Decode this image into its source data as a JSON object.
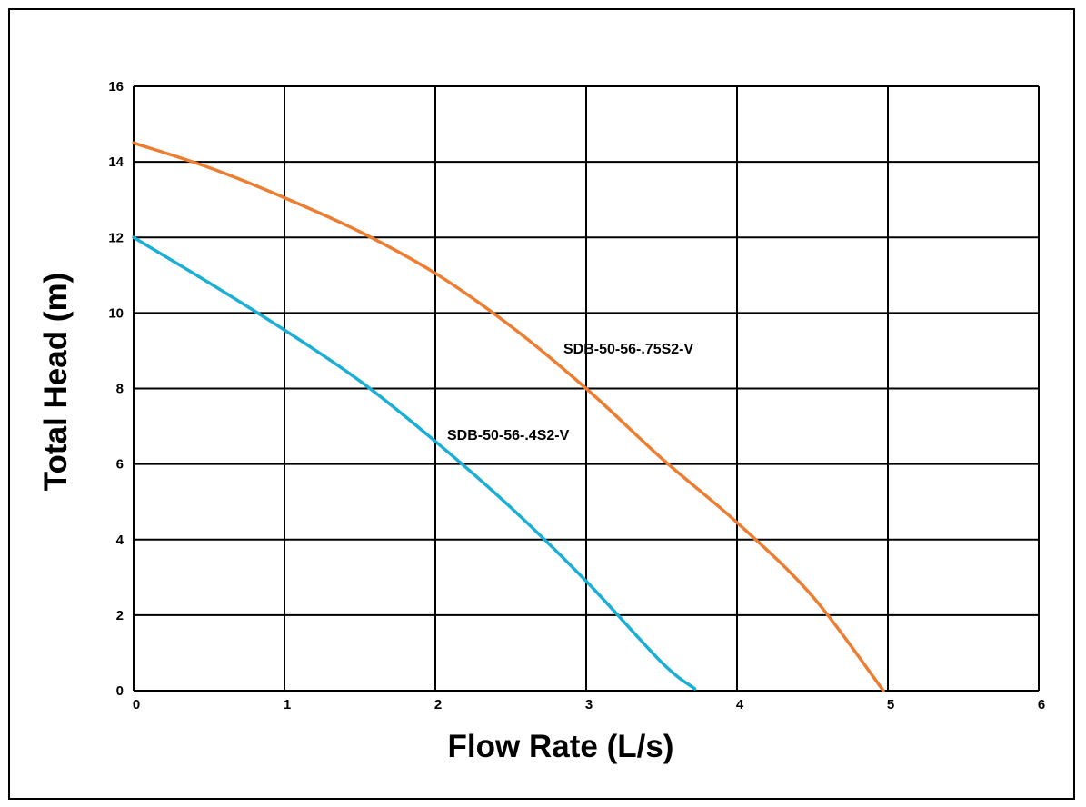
{
  "chart_data": {
    "type": "line",
    "title": "",
    "xlabel": "Flow Rate (L/s)",
    "ylabel": "Total Head (m)",
    "xlim": [
      0,
      6
    ],
    "ylim": [
      0,
      16
    ],
    "x_ticks": [
      0,
      1,
      2,
      3,
      4,
      5,
      6
    ],
    "y_ticks": [
      0,
      2,
      4,
      6,
      8,
      10,
      12,
      14,
      16
    ],
    "grid": true,
    "legend": "none (labels placed on curves)",
    "series": [
      {
        "name": "SDB-50-56-.75S2-V",
        "color": "#ED7D31",
        "x": [
          0,
          0.5,
          1.0,
          1.5,
          2.0,
          2.5,
          3.0,
          3.5,
          4.0,
          4.5,
          4.97
        ],
        "y": [
          14.5,
          13.85,
          13.05,
          12.15,
          11.05,
          9.65,
          8.0,
          6.15,
          4.45,
          2.5,
          0
        ]
      },
      {
        "name": "SDB-50-56-.4S2-V",
        "color": "#1BAFD6",
        "x": [
          0,
          0.5,
          1.0,
          1.5,
          2.0,
          2.5,
          3.0,
          3.5,
          3.72
        ],
        "y": [
          12.0,
          10.8,
          9.55,
          8.2,
          6.6,
          4.85,
          2.9,
          0.75,
          0.05
        ]
      }
    ]
  }
}
